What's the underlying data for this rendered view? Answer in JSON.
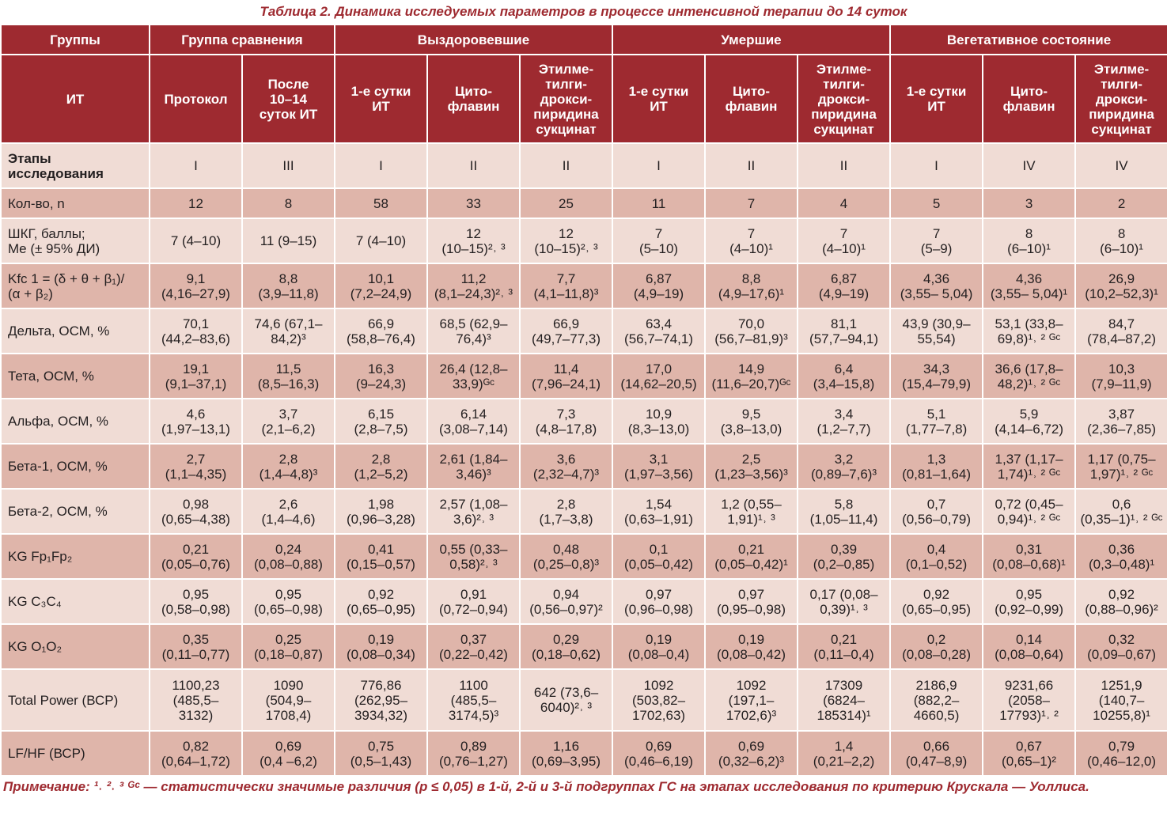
{
  "caption": "Таблица 2. Динамика исследуемых параметров в процессе интенсивной терапии до 14 суток",
  "header_groups": [
    {
      "label": "Группы",
      "span": 1
    },
    {
      "label": "Группа сравнения",
      "span": 2
    },
    {
      "label": "Выздоровевшие",
      "span": 3
    },
    {
      "label": "Умершие",
      "span": 3
    },
    {
      "label": "Вегетативное состояние",
      "span": 3
    }
  ],
  "header_sub": [
    "ИТ",
    "Протокол",
    "После\n10–14\nсуток ИТ",
    "1-е сутки\nИТ",
    "Цито-\nфлавин",
    "Этилме-\nтилги-\nдрокси-\nпиридина\nсукцинат",
    "1-е сутки\nИТ",
    "Цито-\nфлавин",
    "Этилме-\nтилги-\nдрокси-\nпиридина\nсукцинат",
    "1-е сутки\nИТ",
    "Цито-\nфлавин",
    "Этилме-\nтилги-\nдрокси-\nпиридина\nсукцинат"
  ],
  "rows": [
    {
      "cls": "stage odd",
      "label": "Этапы\nисследования",
      "cells": [
        "I",
        "III",
        "I",
        "II",
        "II",
        "I",
        "II",
        "II",
        "I",
        "IV",
        "IV"
      ]
    },
    {
      "cls": "n even",
      "label": "Кол-во, n",
      "cells": [
        "12",
        "8",
        "58",
        "33",
        "25",
        "11",
        "7",
        "4",
        "5",
        "3",
        "2"
      ]
    },
    {
      "cls": "r odd",
      "label": "ШКГ, баллы;\nMe (± 95% ДИ)",
      "cells": [
        "7 (4–10)",
        "11 (9–15)",
        "7 (4–10)",
        "12\n(10–15)²˒ ³",
        "12\n(10–15)²˒ ³",
        "7\n(5–10)",
        "7\n(4–10)¹",
        "7\n(4–10)¹",
        "7\n(5–9)",
        "8\n(6–10)¹",
        "8\n(6–10)¹"
      ]
    },
    {
      "cls": "r even",
      "label": "Kfc 1 = (δ + θ + β₁)/\n(α + β₂)",
      "cells": [
        "9,1\n(4,16–27,9)",
        "8,8\n(3,9–11,8)",
        "10,1\n(7,2–24,9)",
        "11,2\n(8,1–24,3)²˒ ³",
        "7,7\n(4,1–11,8)³",
        "6,87\n(4,9–19)",
        "8,8\n(4,9–17,6)¹",
        "6,87\n(4,9–19)",
        "4,36\n(3,55– 5,04)",
        "4,36\n(3,55– 5,04)¹",
        "26,9\n(10,2–52,3)¹"
      ]
    },
    {
      "cls": "r odd",
      "label": "Дельта, ОСМ, %",
      "cells": [
        "70,1\n(44,2–83,6)",
        "74,6 (67,1–\n84,2)³",
        "66,9\n(58,8–76,4)",
        "68,5 (62,9–\n76,4)³",
        "66,9\n(49,7–77,3)",
        "63,4\n(56,7–74,1)",
        "70,0\n(56,7–81,9)³",
        "81,1\n(57,7–94,1)",
        "43,9 (30,9–\n55,54)",
        "53,1 (33,8–\n69,8)¹˒ ² ᴳᶜ",
        "84,7\n(78,4–87,2)"
      ]
    },
    {
      "cls": "r even",
      "label": "Тета, ОСМ, %",
      "cells": [
        "19,1\n(9,1–37,1)",
        "11,5\n(8,5–16,3)",
        "16,3\n(9–24,3)",
        "26,4 (12,8–\n33,9)ᴳᶜ",
        "11,4\n(7,96–24,1)",
        "17,0\n(14,62–20,5)",
        "14,9\n(11,6–20,7)ᴳᶜ",
        "6,4\n(3,4–15,8)",
        "34,3\n(15,4–79,9)",
        "36,6 (17,8–\n48,2)¹˒ ² ᴳᶜ",
        "10,3\n(7,9–11,9)"
      ]
    },
    {
      "cls": "r odd",
      "label": "Альфа, ОСМ, %",
      "cells": [
        "4,6\n(1,97–13,1)",
        "3,7\n(2,1–6,2)",
        "6,15\n(2,8–7,5)",
        "6,14\n(3,08–7,14)",
        "7,3\n(4,8–17,8)",
        "10,9\n(8,3–13,0)",
        "9,5\n(3,8–13,0)",
        "3,4\n(1,2–7,7)",
        "5,1\n(1,77–7,8)",
        "5,9\n(4,14–6,72)",
        "3,87\n(2,36–7,85)"
      ]
    },
    {
      "cls": "r even",
      "label": "Бета-1, ОСМ, %",
      "cells": [
        "2,7\n(1,1–4,35)",
        "2,8\n(1,4–4,8)³",
        "2,8\n(1,2–5,2)",
        "2,61 (1,84–\n3,46)³",
        "3,6\n(2,32–4,7)³",
        "3,1\n(1,97–3,56)",
        "2,5\n(1,23–3,56)³",
        "3,2\n(0,89–7,6)³",
        "1,3\n(0,81–1,64)",
        "1,37 (1,17–\n1,74)¹˒ ² ᴳᶜ",
        "1,17 (0,75–\n1,97)¹˒ ² ᴳᶜ"
      ]
    },
    {
      "cls": "r odd",
      "label": "Бета-2, ОСМ, %",
      "cells": [
        "0,98\n(0,65–4,38)",
        "2,6\n(1,4–4,6)",
        "1,98\n(0,96–3,28)",
        "2,57 (1,08–\n3,6)²˒ ³",
        "2,8\n(1,7–3,8)",
        "1,54\n(0,63–1,91)",
        "1,2 (0,55–\n1,91)¹˒ ³",
        "5,8\n(1,05–11,4)",
        "0,7\n(0,56–0,79)",
        "0,72 (0,45–\n0,94)¹˒ ² ᴳᶜ",
        "0,6\n(0,35–1)¹˒ ² ᴳᶜ"
      ]
    },
    {
      "cls": "r even",
      "label": "KG Fp₁Fp₂",
      "cells": [
        "0,21\n(0,05–0,76)",
        "0,24\n(0,08–0,88)",
        "0,41\n(0,15–0,57)",
        "0,55 (0,33–\n0,58)²˒ ³",
        "0,48\n(0,25–0,8)³",
        "0,1\n(0,05–0,42)",
        "0,21\n(0,05–0,42)¹",
        "0,39\n(0,2–0,85)",
        "0,4\n(0,1–0,52)",
        "0,31\n(0,08–0,68)¹",
        "0,36\n(0,3–0,48)¹"
      ]
    },
    {
      "cls": "r odd",
      "label": "KG C₃C₄",
      "cells": [
        "0,95\n(0,58–0,98)",
        "0,95\n(0,65–0,98)",
        "0,92\n(0,65–0,95)",
        "0,91\n(0,72–0,94)",
        "0,94\n(0,56–0,97)²",
        "0,97\n(0,96–0,98)",
        "0,97\n(0,95–0,98)",
        "0,17 (0,08–\n0,39)¹˒ ³",
        "0,92\n(0,65–0,95)",
        "0,95\n(0,92–0,99)",
        "0,92\n(0,88–0,96)²"
      ]
    },
    {
      "cls": "r even",
      "label": "KG O₁O₂",
      "cells": [
        "0,35\n(0,11–0,77)",
        "0,25\n(0,18–0,87)",
        "0,19\n(0,08–0,34)",
        "0,37\n(0,22–0,42)",
        "0,29\n(0,18–0,62)",
        "0,19\n(0,08–0,4)",
        "0,19\n(0,08–0,42)",
        "0,21\n(0,11–0,4)",
        "0,2\n(0,08–0,28)",
        "0,14\n(0,08–0,64)",
        "0,32\n(0,09–0,67)"
      ]
    },
    {
      "cls": "tp odd",
      "label": "Total Power (ВСР)",
      "cells": [
        "1100,23\n(485,5–\n3132)",
        "1090\n(504,9–\n1708,4)",
        "776,86\n(262,95–\n3934,32)",
        "1100\n(485,5–\n3174,5)³",
        "642 (73,6–\n6040)²˒ ³",
        "1092\n(503,82–\n1702,63)",
        "1092\n(197,1–\n1702,6)³",
        "17309\n(6824–\n185314)¹",
        "2186,9\n(882,2–\n4660,5)",
        "9231,66\n(2058–\n17793)¹˒ ²",
        "1251,9\n(140,7–\n10255,8)¹"
      ]
    },
    {
      "cls": "lf even",
      "label": "LF/HF (ВСР)",
      "cells": [
        "0,82\n(0,64–1,72)",
        "0,69\n(0,4 –6,2)",
        "0,75\n(0,5–1,43)",
        "0,89\n(0,76–1,27)",
        "1,16\n(0,69–3,95)",
        "0,69\n(0,46–6,19)",
        "0,69\n(0,32–6,2)³",
        "1,4\n(0,21–2,2)",
        "0,66\n(0,47–8,9)",
        "0,67\n(0,65–1)²",
        "0,79\n(0,46–12,0)"
      ]
    }
  ],
  "note": "Примечание: ¹˒ ²˒ ³ ᴳᶜ — статистически значимые различия (р ≤ 0,05) в 1-й, 2-й и 3-й подгруппах ГС на этапах исследования по критерию Крускала — Уоллиса."
}
